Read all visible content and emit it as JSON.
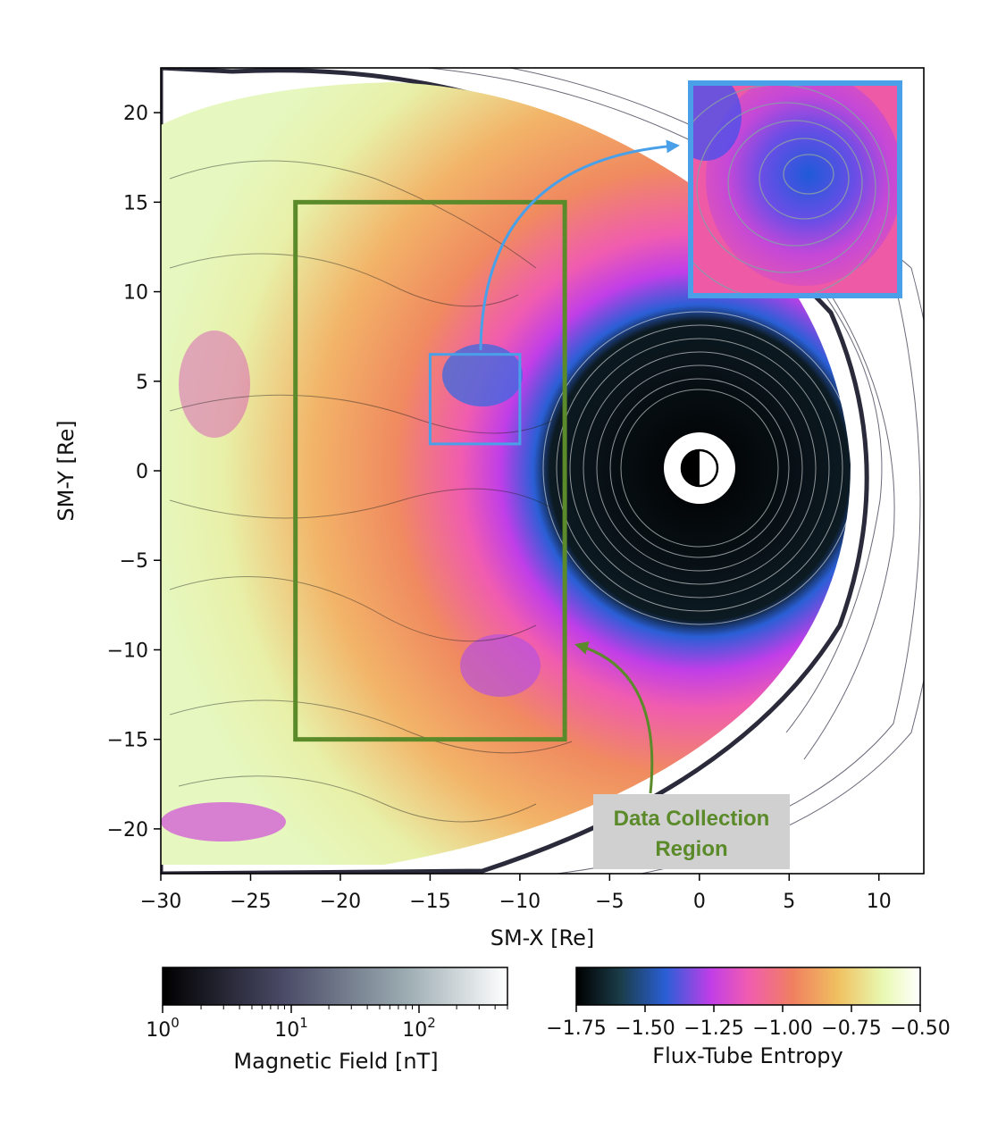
{
  "chart_data": {
    "type": "heatmap",
    "xlabel": "SM-X [Re]",
    "ylabel": "SM-Y [Re]",
    "xlim": [
      -30,
      12.5
    ],
    "ylim": [
      -22.5,
      22.5
    ],
    "xticks": [
      -30,
      -25,
      -20,
      -15,
      -10,
      -5,
      0,
      5,
      10
    ],
    "yticks": [
      20,
      15,
      10,
      5,
      0,
      -5,
      -10,
      -15,
      -20
    ],
    "xtick_labels": [
      "−30",
      "−25",
      "−20",
      "−15",
      "−10",
      "−5",
      "0",
      "5",
      "10"
    ],
    "ytick_labels": [
      "20",
      "15",
      "10",
      "5",
      "0",
      "−5",
      "−10",
      "−15",
      "−20"
    ],
    "regions": {
      "data_collection": {
        "x": [
          -22.5,
          -7.5
        ],
        "y": [
          -15,
          15
        ],
        "color": "#5b8a2a"
      },
      "zoom_box": {
        "x": [
          -15,
          -10
        ],
        "y": [
          1.5,
          6.5
        ],
        "color": "#4aa0e8"
      }
    },
    "annotation": {
      "line1": "Data Collection",
      "line2": "Region",
      "color": "#5b8a2a"
    },
    "colorbars": [
      {
        "label": "Magnetic Field [nT]",
        "scale": "log",
        "range": [
          1,
          500
        ],
        "major_ticks": [
          "10",
          "10",
          "10"
        ],
        "major_exponents": [
          "0",
          "1",
          "2"
        ],
        "colors": [
          "#000000",
          "#4a4a66",
          "#9aaab0",
          "#ffffff"
        ]
      },
      {
        "label": "Flux-Tube Entropy",
        "scale": "linear",
        "range": [
          -1.75,
          -0.5
        ],
        "ticks": [
          -1.75,
          -1.5,
          -1.25,
          -1.0,
          -0.75,
          -0.5
        ],
        "tick_labels": [
          "−1.75",
          "−1.50",
          "−1.25",
          "−1.00",
          "−0.75",
          "−0.50"
        ],
        "colors": [
          "#000000",
          "#1b3d4a",
          "#2a5fd6",
          "#c03ee8",
          "#f05cb0",
          "#f08060",
          "#f0c060",
          "#e8f8b0",
          "#ffffff"
        ]
      }
    ]
  }
}
